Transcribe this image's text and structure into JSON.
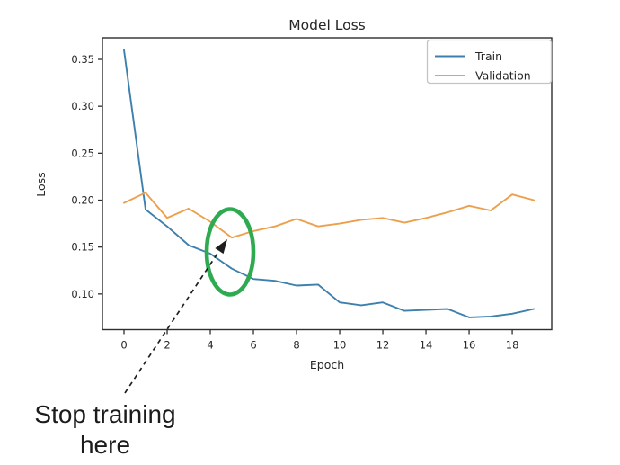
{
  "chart_data": {
    "type": "line",
    "title": "Model Loss",
    "xlabel": "Epoch",
    "ylabel": "Loss",
    "x": [
      0,
      1,
      2,
      3,
      4,
      5,
      6,
      7,
      8,
      9,
      10,
      11,
      12,
      13,
      14,
      15,
      16,
      17,
      18,
      19
    ],
    "series": [
      {
        "name": "Train",
        "color": "#3d7fad",
        "values": [
          0.36,
          0.19,
          0.172,
          0.152,
          0.143,
          0.127,
          0.116,
          0.114,
          0.109,
          0.11,
          0.091,
          0.088,
          0.091,
          0.082,
          0.083,
          0.084,
          0.075,
          0.076,
          0.079,
          0.084
        ]
      },
      {
        "name": "Validation",
        "color": "#eca04e",
        "values": [
          0.197,
          0.208,
          0.181,
          0.191,
          0.177,
          0.16,
          0.167,
          0.172,
          0.18,
          0.172,
          0.175,
          0.179,
          0.181,
          0.176,
          0.181,
          0.187,
          0.194,
          0.189,
          0.206,
          0.2
        ]
      }
    ],
    "xticks": [
      0,
      2,
      4,
      6,
      8,
      10,
      12,
      14,
      16,
      18
    ],
    "yticks": [
      0.1,
      0.15,
      0.2,
      0.25,
      0.3,
      0.35
    ],
    "xlim": [
      -1,
      19.83
    ],
    "ylim": [
      0.062,
      0.373
    ],
    "grid": false,
    "legend_position": "upper right"
  },
  "annotation": {
    "lines": [
      "Stop training",
      "here"
    ],
    "ellipse_color": "#2eab50",
    "target": {
      "epoch": 5,
      "loss": 0.16
    }
  }
}
